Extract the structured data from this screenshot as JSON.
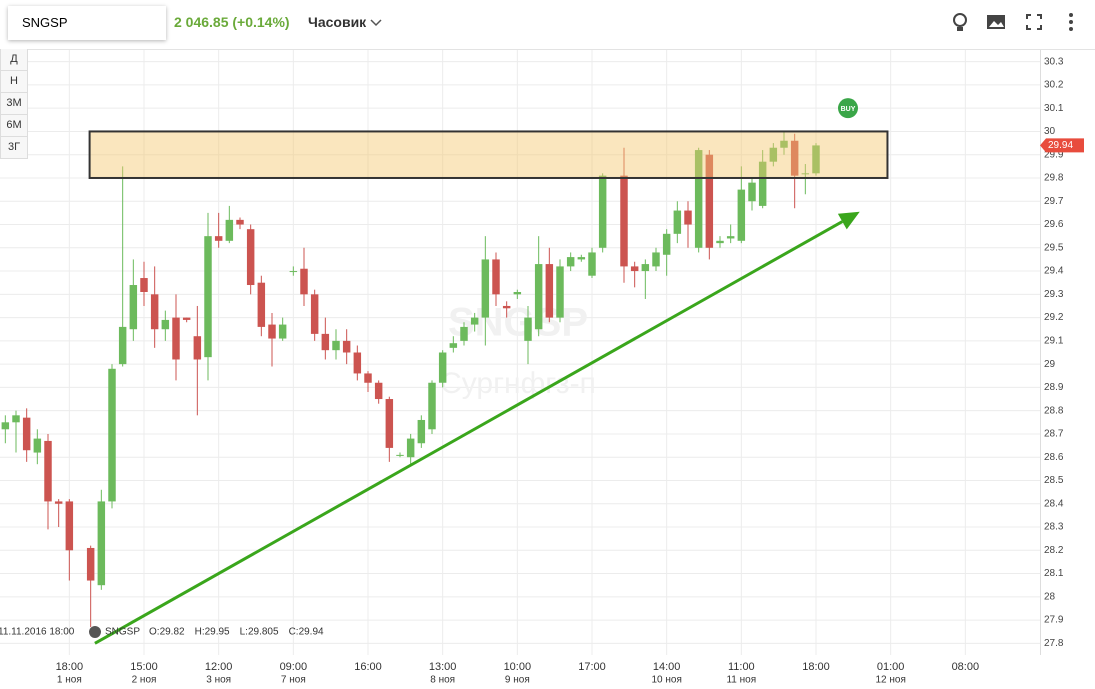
{
  "header": {
    "symbol": "SNGSP",
    "price": "2 046.85 (+0.14%)",
    "interval": "Часовик"
  },
  "range_buttons": [
    "Д",
    "Н",
    "3М",
    "6М",
    "3Г"
  ],
  "watermark": {
    "symbol": "SNGSP",
    "name": "Сургнфгз-п"
  },
  "legend": {
    "datetime": "11.11.2016 18:00",
    "symbol": "SNGSP",
    "ohlc": [
      {
        "label": "O:",
        "value": 29.82
      },
      {
        "label": "H:",
        "value": 29.95
      },
      {
        "label": "L:",
        "value": 29.805
      },
      {
        "label": "C:",
        "value": 29.94
      }
    ]
  },
  "chart_data": {
    "type": "candlestick",
    "up_color": "#6cba5c",
    "down_color": "#cc5450",
    "grid": true,
    "xlim": [
      -0.5,
      97
    ],
    "ylim": [
      27.75,
      30.35
    ],
    "yticks": [
      27.8,
      27.9,
      28,
      28.1,
      28.2,
      28.3,
      28.4,
      28.5,
      28.6,
      28.7,
      28.8,
      28.9,
      29,
      29.1,
      29.2,
      29.3,
      29.4,
      29.5,
      29.6,
      29.7,
      29.8,
      29.9,
      30,
      30.1,
      30.2,
      30.3
    ],
    "xticks": [
      {
        "value": 6,
        "label": "18:00"
      },
      {
        "value": 13,
        "label": "15:00"
      },
      {
        "value": 20,
        "label": "12:00"
      },
      {
        "value": 27,
        "label": "09:00"
      },
      {
        "value": 34,
        "label": "16:00"
      },
      {
        "value": 41,
        "label": "13:00"
      },
      {
        "value": 48,
        "label": "10:00"
      },
      {
        "value": 55,
        "label": "17:00"
      },
      {
        "value": 62,
        "label": "14:00"
      },
      {
        "value": 69,
        "label": "11:00"
      },
      {
        "value": 76,
        "label": "18:00"
      },
      {
        "value": 83,
        "label": "01:00"
      },
      {
        "value": 90,
        "label": "08:00"
      }
    ],
    "date_ticks": [
      {
        "value": 6,
        "label": "1 ноя"
      },
      {
        "value": 13,
        "label": "2 ноя"
      },
      {
        "value": 20,
        "label": "3 ноя"
      },
      {
        "value": 27,
        "label": "7 ноя"
      },
      {
        "value": 41,
        "label": "8 ноя"
      },
      {
        "value": 48,
        "label": "9 ноя"
      },
      {
        "value": 62,
        "label": "10 ноя"
      },
      {
        "value": 69,
        "label": "11 ноя"
      },
      {
        "value": 83,
        "label": "12 ноя"
      }
    ],
    "open": [
      28.72,
      28.75,
      28.77,
      28.62,
      28.67,
      28.41,
      28.41,
      null,
      28.21,
      28.05,
      28.41,
      29.0,
      29.15,
      29.37,
      29.3,
      29.15,
      29.2,
      29.2,
      29.12,
      29.03,
      29.55,
      29.53,
      29.62,
      29.58,
      29.35,
      29.17,
      29.11,
      29.4,
      29.41,
      29.3,
      29.13,
      29.06,
      29.1,
      29.05,
      28.96,
      28.92,
      28.85,
      28.61,
      28.6,
      28.66,
      28.72,
      28.92,
      29.07,
      29.1,
      29.17,
      29.2,
      29.45,
      29.25,
      29.3,
      29.1,
      29.15,
      29.43,
      29.2,
      29.42,
      29.45,
      29.38,
      29.5,
      null,
      29.81,
      29.42,
      29.4,
      29.42,
      29.47,
      29.56,
      29.66,
      29.5,
      29.9,
      29.52,
      29.54,
      29.53,
      29.7,
      29.68,
      29.87,
      29.93,
      29.96,
      29.82,
      29.82
    ],
    "high": [
      28.78,
      28.8,
      28.81,
      28.72,
      28.7,
      28.42,
      28.42,
      null,
      28.22,
      28.46,
      29.0,
      29.85,
      29.45,
      29.44,
      29.42,
      29.23,
      29.3,
      29.2,
      29.25,
      29.65,
      29.65,
      29.68,
      29.63,
      29.6,
      29.38,
      29.22,
      29.2,
      29.42,
      29.5,
      29.32,
      29.2,
      29.15,
      29.15,
      29.08,
      28.97,
      28.93,
      28.86,
      28.62,
      28.7,
      28.78,
      28.93,
      29.06,
      29.12,
      29.18,
      29.22,
      29.55,
      29.48,
      29.27,
      29.32,
      29.25,
      29.55,
      29.5,
      29.45,
      29.48,
      29.47,
      29.5,
      29.82,
      null,
      29.93,
      29.44,
      29.45,
      29.5,
      29.58,
      29.7,
      29.7,
      29.93,
      29.92,
      29.55,
      29.6,
      29.85,
      29.8,
      29.92,
      29.95,
      30.0,
      29.99,
      29.86,
      29.95
    ],
    "low": [
      28.66,
      28.62,
      28.58,
      28.57,
      28.29,
      28.3,
      28.07,
      null,
      27.87,
      28.03,
      28.38,
      28.99,
      29.1,
      29.25,
      29.07,
      29.1,
      28.93,
      29.18,
      28.78,
      28.93,
      29.5,
      29.52,
      29.58,
      29.3,
      29.12,
      28.99,
      29.1,
      29.38,
      29.25,
      29.1,
      29.02,
      29.02,
      29.0,
      28.93,
      28.88,
      28.83,
      28.58,
      28.6,
      28.57,
      28.64,
      28.7,
      28.9,
      29.05,
      29.08,
      29.14,
      29.08,
      29.25,
      29.2,
      29.28,
      29.0,
      29.12,
      29.18,
      29.18,
      29.4,
      29.44,
      29.37,
      29.48,
      null,
      29.35,
      29.33,
      29.28,
      29.4,
      29.38,
      29.52,
      29.5,
      29.48,
      29.45,
      29.5,
      29.52,
      29.52,
      29.66,
      29.67,
      29.85,
      29.9,
      29.67,
      29.73,
      29.81
    ],
    "close": [
      28.75,
      28.78,
      28.63,
      28.68,
      28.41,
      28.4,
      28.2,
      null,
      28.07,
      28.41,
      28.98,
      29.16,
      29.34,
      29.31,
      29.15,
      29.19,
      29.02,
      29.19,
      29.02,
      29.55,
      29.53,
      29.62,
      29.6,
      29.34,
      29.16,
      29.11,
      29.17,
      29.4,
      29.3,
      29.13,
      29.06,
      29.1,
      29.05,
      28.96,
      28.92,
      28.85,
      28.64,
      28.61,
      28.68,
      28.76,
      28.92,
      29.05,
      29.09,
      29.16,
      29.2,
      29.45,
      29.3,
      29.24,
      29.31,
      29.2,
      29.43,
      29.2,
      29.42,
      29.46,
      29.46,
      29.48,
      29.81,
      null,
      29.42,
      29.4,
      29.43,
      29.48,
      29.56,
      29.66,
      29.6,
      29.92,
      29.5,
      29.53,
      29.55,
      29.75,
      29.78,
      29.87,
      29.93,
      29.96,
      29.81,
      29.82,
      29.94
    ],
    "zone": {
      "x": [
        7.9,
        82.7
      ],
      "y": [
        29.8,
        30.0
      ]
    },
    "trend_arrow": {
      "x": [
        8.4,
        80.1
      ],
      "y": [
        27.8,
        29.655
      ]
    },
    "buy_marker": {
      "label": "BUY",
      "x": 79,
      "y": 30.1
    },
    "last_price": 29.94
  }
}
